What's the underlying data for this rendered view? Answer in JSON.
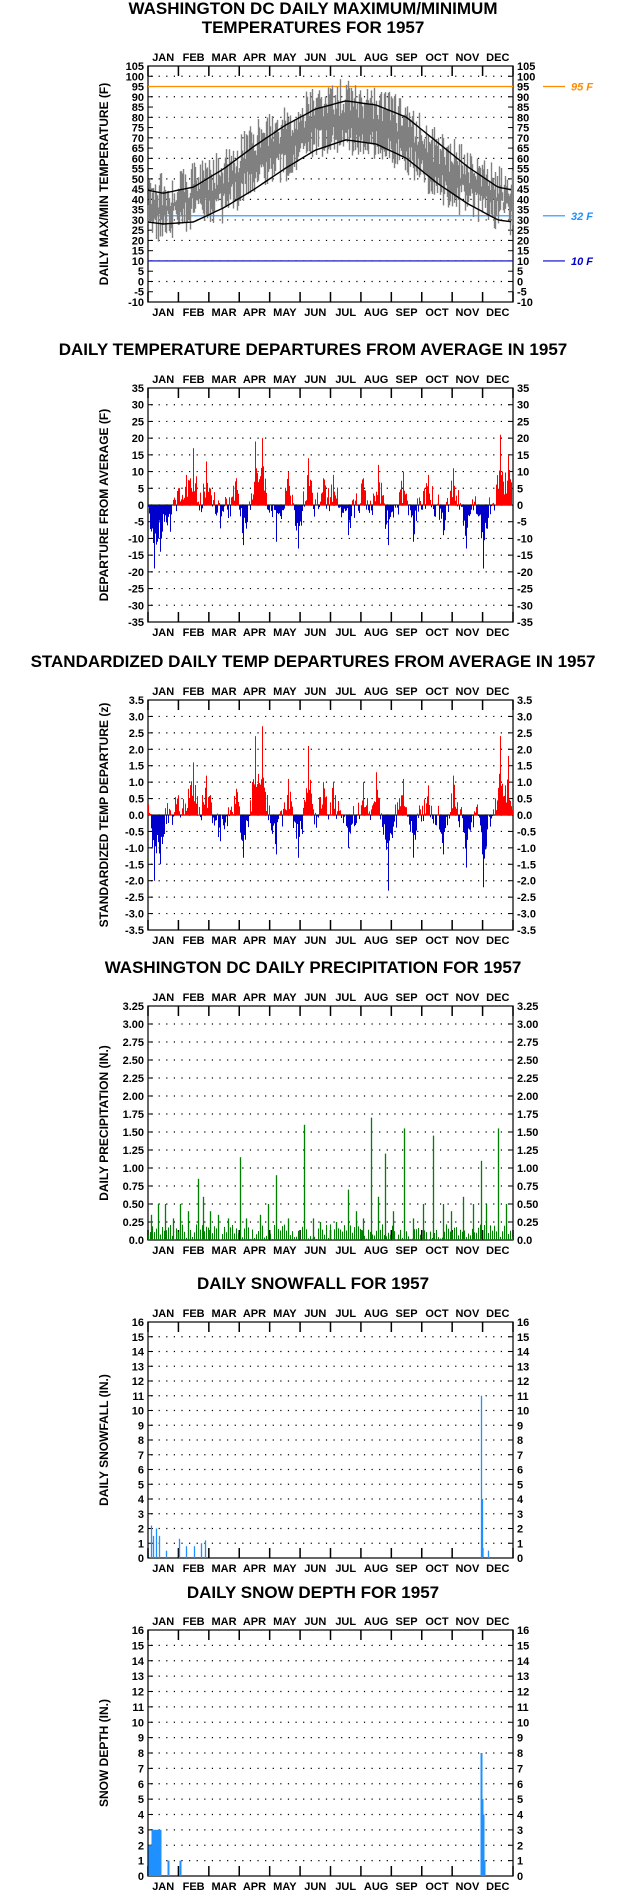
{
  "months": [
    "JAN",
    "FEB",
    "MAR",
    "APR",
    "MAY",
    "JUN",
    "JUL",
    "AUG",
    "SEP",
    "OCT",
    "NOV",
    "DEC"
  ],
  "colors": {
    "temp_band": "#808080",
    "normal_line": "#000000",
    "above_avg": "#ff0000",
    "below_avg": "#0000cc",
    "precip": "#008000",
    "snow": "#1e90ff",
    "ref_95": "#ff8c00",
    "ref_32": "#1e90ff",
    "ref_10": "#0000cc"
  },
  "chart_data": [
    {
      "id": "temp",
      "type": "area",
      "title_lines": [
        "WASHINGTON DC DAILY MAXIMUM/MINIMUM",
        "TEMPERATURES FOR 1957"
      ],
      "ylabel": "DAILY MAX/MIN TEMPERATURE (F)",
      "ylim": [
        -10,
        105
      ],
      "ytick_step": 5,
      "ytick_labels": [
        "-10",
        "-5",
        "0",
        "5",
        "10",
        "15",
        "20",
        "25",
        "30",
        "35",
        "40",
        "45",
        "50",
        "55",
        "60",
        "65",
        "70",
        "75",
        "80",
        "85",
        "90",
        "95",
        "100",
        "105"
      ],
      "grid": true,
      "reference_lines": [
        {
          "value": 95,
          "label": "95 F",
          "color": "#ff8c00"
        },
        {
          "value": 32,
          "label": "32 F",
          "color": "#1e90ff"
        },
        {
          "value": 10,
          "label": "10 F",
          "color": "#0000cc"
        }
      ],
      "normal_max_by_month": [
        43,
        46,
        55,
        66,
        76,
        84,
        88,
        86,
        80,
        68,
        56,
        46
      ],
      "normal_min_by_month": [
        28,
        29,
        36,
        45,
        55,
        64,
        69,
        67,
        60,
        48,
        38,
        30
      ],
      "observed_max_by_month": [
        44,
        50,
        55,
        70,
        77,
        88,
        90,
        86,
        80,
        65,
        57,
        48
      ],
      "observed_min_by_month": [
        26,
        34,
        36,
        50,
        56,
        67,
        70,
        67,
        60,
        46,
        38,
        33
      ]
    },
    {
      "id": "dep",
      "type": "bar",
      "title_lines": [
        "DAILY TEMPERATURE DEPARTURES FROM AVERAGE IN 1957"
      ],
      "ylabel": "DEPARTURE FROM AVERAGE (F)",
      "ylim": [
        -35,
        35
      ],
      "ytick_step": 5,
      "ytick_labels": [
        "-35",
        "-30",
        "-25",
        "-20",
        "-15",
        "-10",
        "-5",
        "0",
        "5",
        "10",
        "15",
        "20",
        "25",
        "30",
        "35"
      ],
      "grid": true,
      "positive_color": "#ff0000",
      "negative_color": "#0000cc",
      "spikes": [
        [
          6,
          -19
        ],
        [
          12,
          -14
        ],
        [
          22,
          -8
        ],
        [
          30,
          5
        ],
        [
          38,
          9
        ],
        [
          45,
          17
        ],
        [
          58,
          13
        ],
        [
          72,
          -7
        ],
        [
          88,
          8
        ],
        [
          95,
          -12
        ],
        [
          107,
          19
        ],
        [
          114,
          20
        ],
        [
          128,
          -11
        ],
        [
          140,
          10
        ],
        [
          150,
          -13
        ],
        [
          160,
          14
        ],
        [
          175,
          8
        ],
        [
          185,
          9
        ],
        [
          200,
          -9
        ],
        [
          215,
          8
        ],
        [
          230,
          12
        ],
        [
          240,
          -12
        ],
        [
          255,
          10
        ],
        [
          265,
          -11
        ],
        [
          280,
          9
        ],
        [
          295,
          -9
        ],
        [
          305,
          11
        ],
        [
          318,
          -13
        ],
        [
          335,
          -19
        ],
        [
          352,
          21
        ],
        [
          360,
          15
        ]
      ]
    },
    {
      "id": "std",
      "type": "bar",
      "title_lines": [
        "STANDARDIZED DAILY TEMP DEPARTURES FROM AVERAGE IN 1957"
      ],
      "ylabel": "STANDARDIZED TEMP DEPARTURE (z)",
      "ylim": [
        -3.5,
        3.5
      ],
      "ytick_step": 0.5,
      "ytick_labels": [
        "-3.5",
        "-3.0",
        "-2.5",
        "-2.0",
        "-1.5",
        "-1.0",
        "-0.5",
        "0.0",
        "0.5",
        "1.0",
        "1.5",
        "2.0",
        "2.5",
        "3.0",
        "3.5"
      ],
      "grid": true,
      "positive_color": "#ff0000",
      "negative_color": "#0000cc",
      "spikes": [
        [
          6,
          -2.0
        ],
        [
          12,
          -1.5
        ],
        [
          30,
          0.6
        ],
        [
          40,
          0.8
        ],
        [
          45,
          1.6
        ],
        [
          58,
          1.2
        ],
        [
          72,
          -0.8
        ],
        [
          88,
          0.8
        ],
        [
          95,
          -1.3
        ],
        [
          107,
          2.4
        ],
        [
          114,
          2.7
        ],
        [
          128,
          -1.2
        ],
        [
          140,
          1.1
        ],
        [
          150,
          -1.3
        ],
        [
          160,
          2.1
        ],
        [
          175,
          1.0
        ],
        [
          185,
          1.0
        ],
        [
          200,
          -1.0
        ],
        [
          215,
          1.0
        ],
        [
          228,
          1.3
        ],
        [
          240,
          -2.3
        ],
        [
          255,
          1.1
        ],
        [
          265,
          -1.3
        ],
        [
          280,
          0.9
        ],
        [
          295,
          -1.2
        ],
        [
          305,
          1.2
        ],
        [
          318,
          -1.6
        ],
        [
          335,
          -2.2
        ],
        [
          352,
          2.4
        ],
        [
          360,
          1.8
        ]
      ]
    },
    {
      "id": "prcp",
      "type": "bar",
      "title_lines": [
        "WASHINGTON DC DAILY PRECIPITATION FOR 1957"
      ],
      "ylabel": "DAILY PRECIPITATION (IN.)",
      "ylim": [
        0,
        3.25
      ],
      "ytick_step": 0.25,
      "ytick_labels": [
        "0.0",
        "0.25",
        "0.50",
        "0.75",
        "1.00",
        "1.25",
        "1.50",
        "1.75",
        "2.00",
        "2.25",
        "2.50",
        "2.75",
        "3.00",
        "3.25"
      ],
      "grid": true,
      "color": "#008000",
      "spikes": [
        [
          3,
          0.35
        ],
        [
          10,
          0.5
        ],
        [
          17,
          0.5
        ],
        [
          25,
          0.3
        ],
        [
          32,
          0.5
        ],
        [
          40,
          0.4
        ],
        [
          50,
          0.85
        ],
        [
          55,
          0.6
        ],
        [
          62,
          0.4
        ],
        [
          70,
          0.35
        ],
        [
          80,
          0.3
        ],
        [
          92,
          1.15
        ],
        [
          98,
          0.3
        ],
        [
          112,
          0.35
        ],
        [
          120,
          0.5
        ],
        [
          128,
          0.9
        ],
        [
          140,
          0.3
        ],
        [
          156,
          1.6
        ],
        [
          165,
          0.3
        ],
        [
          172,
          0.25
        ],
        [
          188,
          0.25
        ],
        [
          200,
          0.7
        ],
        [
          208,
          0.4
        ],
        [
          215,
          0.3
        ],
        [
          223,
          1.7
        ],
        [
          230,
          0.6
        ],
        [
          237,
          1.2
        ],
        [
          245,
          0.4
        ],
        [
          256,
          1.55
        ],
        [
          265,
          0.3
        ],
        [
          275,
          0.5
        ],
        [
          285,
          1.45
        ],
        [
          295,
          0.5
        ],
        [
          303,
          0.4
        ],
        [
          315,
          0.6
        ],
        [
          325,
          0.5
        ],
        [
          333,
          1.1
        ],
        [
          338,
          0.5
        ],
        [
          350,
          1.55
        ],
        [
          358,
          0.5
        ]
      ]
    },
    {
      "id": "snow",
      "type": "bar",
      "title_lines": [
        "DAILY SNOWFALL FOR 1957"
      ],
      "ylabel": "DAILY SNOWFALL (IN.)",
      "ylim": [
        0,
        16
      ],
      "ytick_step": 1,
      "ytick_labels": [
        "0",
        "1",
        "2",
        "3",
        "4",
        "5",
        "6",
        "7",
        "8",
        "9",
        "10",
        "11",
        "12",
        "13",
        "14",
        "15",
        "16"
      ],
      "grid": true,
      "color": "#1e90ff",
      "spikes": [
        [
          3,
          2.2
        ],
        [
          5,
          1.5
        ],
        [
          8,
          2.0
        ],
        [
          11,
          1.5
        ],
        [
          18,
          0.5
        ],
        [
          31,
          1.3
        ],
        [
          38,
          0.8
        ],
        [
          46,
          0.8
        ],
        [
          53,
          1.0
        ],
        [
          57,
          1.2
        ],
        [
          333,
          11.0
        ],
        [
          334,
          4.0
        ],
        [
          340,
          0.5
        ]
      ]
    },
    {
      "id": "depth",
      "type": "bar",
      "title_lines": [
        "DAILY SNOW DEPTH FOR 1957"
      ],
      "ylabel": "SNOW DEPTH (IN.)",
      "ylim": [
        0,
        16
      ],
      "ytick_step": 1,
      "ytick_labels": [
        "0",
        "1",
        "2",
        "3",
        "4",
        "5",
        "6",
        "7",
        "8",
        "9",
        "10",
        "11",
        "12",
        "13",
        "14",
        "15",
        "16"
      ],
      "grid": true,
      "color": "#1e90ff",
      "spikes": [
        [
          1,
          2.0
        ],
        [
          2,
          2.0
        ],
        [
          3,
          1.0
        ],
        [
          4,
          3.0
        ],
        [
          5,
          3.0
        ],
        [
          6,
          3.0
        ],
        [
          7,
          3.0
        ],
        [
          8,
          3.0
        ],
        [
          9,
          3.0
        ],
        [
          10,
          3.0
        ],
        [
          11,
          3.0
        ],
        [
          12,
          3.0
        ],
        [
          20,
          1.0
        ],
        [
          32,
          1.0
        ],
        [
          333,
          8.0
        ],
        [
          334,
          5.0
        ],
        [
          335,
          4.0
        ],
        [
          336,
          1.0
        ]
      ]
    }
  ]
}
